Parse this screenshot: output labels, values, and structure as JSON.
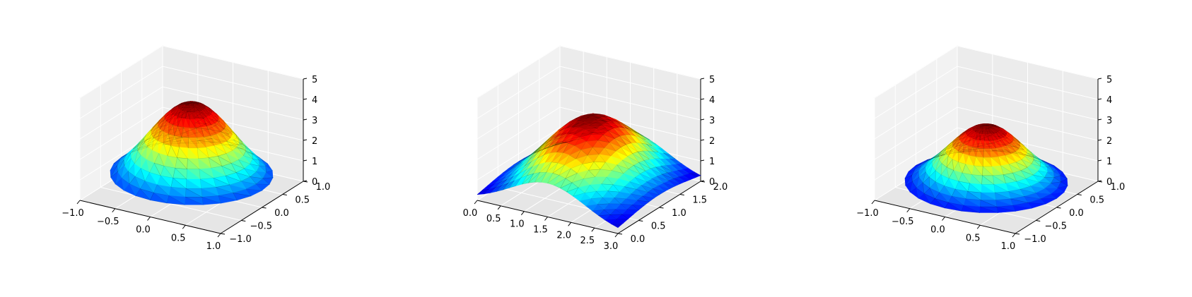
{
  "chart_data": [
    {
      "type": "surface3d",
      "domain": "disk",
      "x": [
        0,
        0.0
      ],
      "xlim": [
        -1.0,
        1.0
      ],
      "ylim": [
        -1.0,
        1.0
      ],
      "zlim": [
        0,
        5
      ],
      "peak": 4.3,
      "center": [
        0.0,
        0.0
      ],
      "sigma": 0.55,
      "xticks": [
        "−1.0",
        "−0.5",
        "0.0",
        "0.5",
        "1.0"
      ],
      "yticks": [
        "−1.0",
        "−0.5",
        "0.0",
        "0.5",
        "1.0"
      ],
      "zticks": [
        "0",
        "1",
        "2",
        "3",
        "4",
        "5"
      ],
      "colormap": "jet",
      "grid": true
    },
    {
      "type": "surface3d",
      "domain": "rectangle",
      "xlim": [
        0.0,
        3.0
      ],
      "ylim": [
        0.0,
        2.0
      ],
      "zlim": [
        0,
        5
      ],
      "peak": 3.6,
      "center": [
        1.5,
        1.0
      ],
      "sigma": 0.8,
      "xticks": [
        "0.0",
        "0.5",
        "1.0",
        "1.5",
        "2.0",
        "2.5",
        "3.0"
      ],
      "yticks": [
        "0.0",
        "0.5",
        "1.0",
        "1.5",
        "2.0"
      ],
      "zticks": [
        "0",
        "1",
        "2",
        "3",
        "4",
        "5"
      ],
      "colormap": "jet",
      "grid": true
    },
    {
      "type": "surface3d",
      "domain": "disk",
      "xlim": [
        -1.0,
        1.0
      ],
      "ylim": [
        -1.0,
        1.0
      ],
      "zlim": [
        0,
        5
      ],
      "peak": 3.2,
      "center": [
        0.0,
        0.0
      ],
      "sigma": 0.5,
      "xticks": [
        "−1.0",
        "−0.5",
        "0.0",
        "0.5",
        "1.0"
      ],
      "yticks": [
        "−1.0",
        "−0.5",
        "0.0",
        "0.5",
        "1.0"
      ],
      "zticks": [
        "0",
        "1",
        "2",
        "3",
        "4",
        "5"
      ],
      "colormap": "jet",
      "grid": true
    }
  ]
}
